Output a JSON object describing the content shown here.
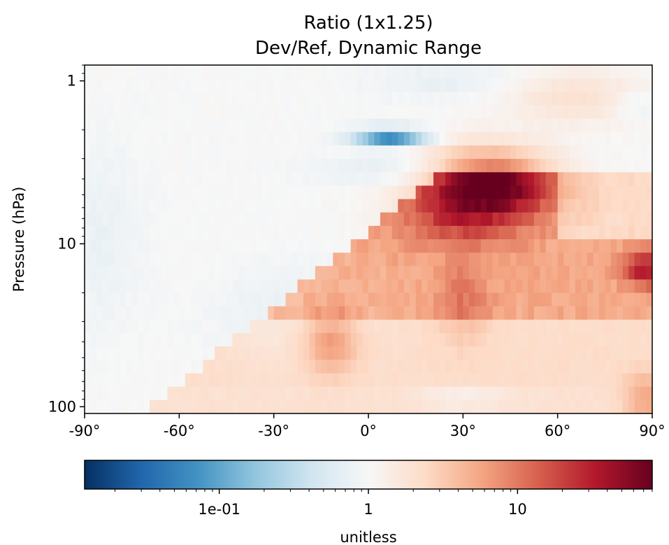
{
  "chart_data": {
    "type": "heatmap",
    "title": "Ratio (1x1.25)",
    "subtitle": "Dev/Ref, Dynamic Range",
    "xlabel": "",
    "ylabel": "Pressure (hPa)",
    "x_ticks": [
      {
        "value": -90,
        "label": "-90°"
      },
      {
        "value": -60,
        "label": "-60°"
      },
      {
        "value": -30,
        "label": "-30°"
      },
      {
        "value": 0,
        "label": "0°"
      },
      {
        "value": 30,
        "label": "30°"
      },
      {
        "value": 60,
        "label": "60°"
      },
      {
        "value": 90,
        "label": "90°"
      }
    ],
    "y_ticks": [
      {
        "value": 1,
        "label": "1"
      },
      {
        "value": 10,
        "label": "10"
      },
      {
        "value": 100,
        "label": "100"
      }
    ],
    "xlim": [
      -90,
      90
    ],
    "ylim": [
      110,
      0.8
    ],
    "y_scale": "log",
    "colormap": "RdBu_r",
    "colorbar": {
      "label": "unitless",
      "scale": "log",
      "range": [
        0.0125,
        80
      ],
      "ticks": [
        {
          "value": 0.1,
          "label": "1e-01"
        },
        {
          "value": 1,
          "label": "1"
        },
        {
          "value": 10,
          "label": "10"
        }
      ]
    },
    "value_summary": [
      {
        "region": "high values near 40°N around 3–5 hPa",
        "value": 75
      },
      {
        "region": "enhanced band 20°N–60°N at 5–10 hPa",
        "value": 25
      },
      {
        "region": "high values near 85°N–90°N at 10–15 hPa",
        "value": 40
      },
      {
        "region": "moderate 0°–60°N at 10–60 hPa",
        "value": 6
      },
      {
        "region": "low values near 5°N around 2 hPa",
        "value": 0.06
      },
      {
        "region": "slightly low -40°–0° at 20–40 hPa",
        "value": 0.7
      },
      {
        "region": "background",
        "value": 1
      }
    ]
  }
}
